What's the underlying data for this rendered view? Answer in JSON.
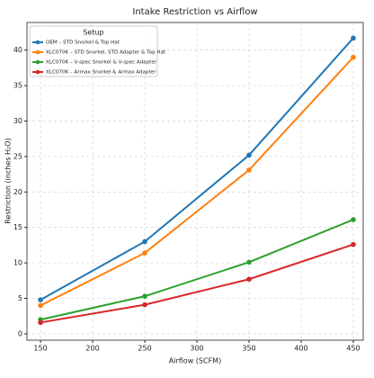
{
  "chart_data": {
    "type": "line",
    "title": "Intake Restriction vs Airflow",
    "x_label": "Airflow (SCFM)",
    "y_label": "Restriction (inches H₂O)",
    "legend_title": "Setup",
    "x": [
      150,
      250,
      350,
      450
    ],
    "series": [
      {
        "name": "OEM – STD Snorkel & Top Hat",
        "color": "#1f77b4",
        "values": [
          4.8,
          13.0,
          25.2,
          41.7
        ]
      },
      {
        "name": "XLC070K – STD Snorkel, STD Adapter & Top Hat",
        "color": "#ff7f0e",
        "values": [
          4.0,
          11.4,
          23.1,
          39.0
        ]
      },
      {
        "name": "XLC070K – V-spec Snorkel & V-spec Adapter",
        "color": "#2ca02c",
        "values": [
          2.0,
          5.3,
          10.1,
          16.1
        ]
      },
      {
        "name": "XLC070K – Armax Snorkel & Armax Adapter",
        "color": "#d62728",
        "values": [
          1.6,
          4.1,
          7.7,
          12.6
        ]
      }
    ],
    "xlim": [
      137,
      459.5
    ],
    "ylim": [
      -0.9,
      43.9
    ],
    "xticks": [
      150,
      200,
      250,
      300,
      350,
      400,
      450
    ],
    "yticks": [
      0,
      5,
      10,
      15,
      20,
      25,
      30,
      35,
      40
    ],
    "grid": true,
    "legend_position": "upper-left"
  }
}
